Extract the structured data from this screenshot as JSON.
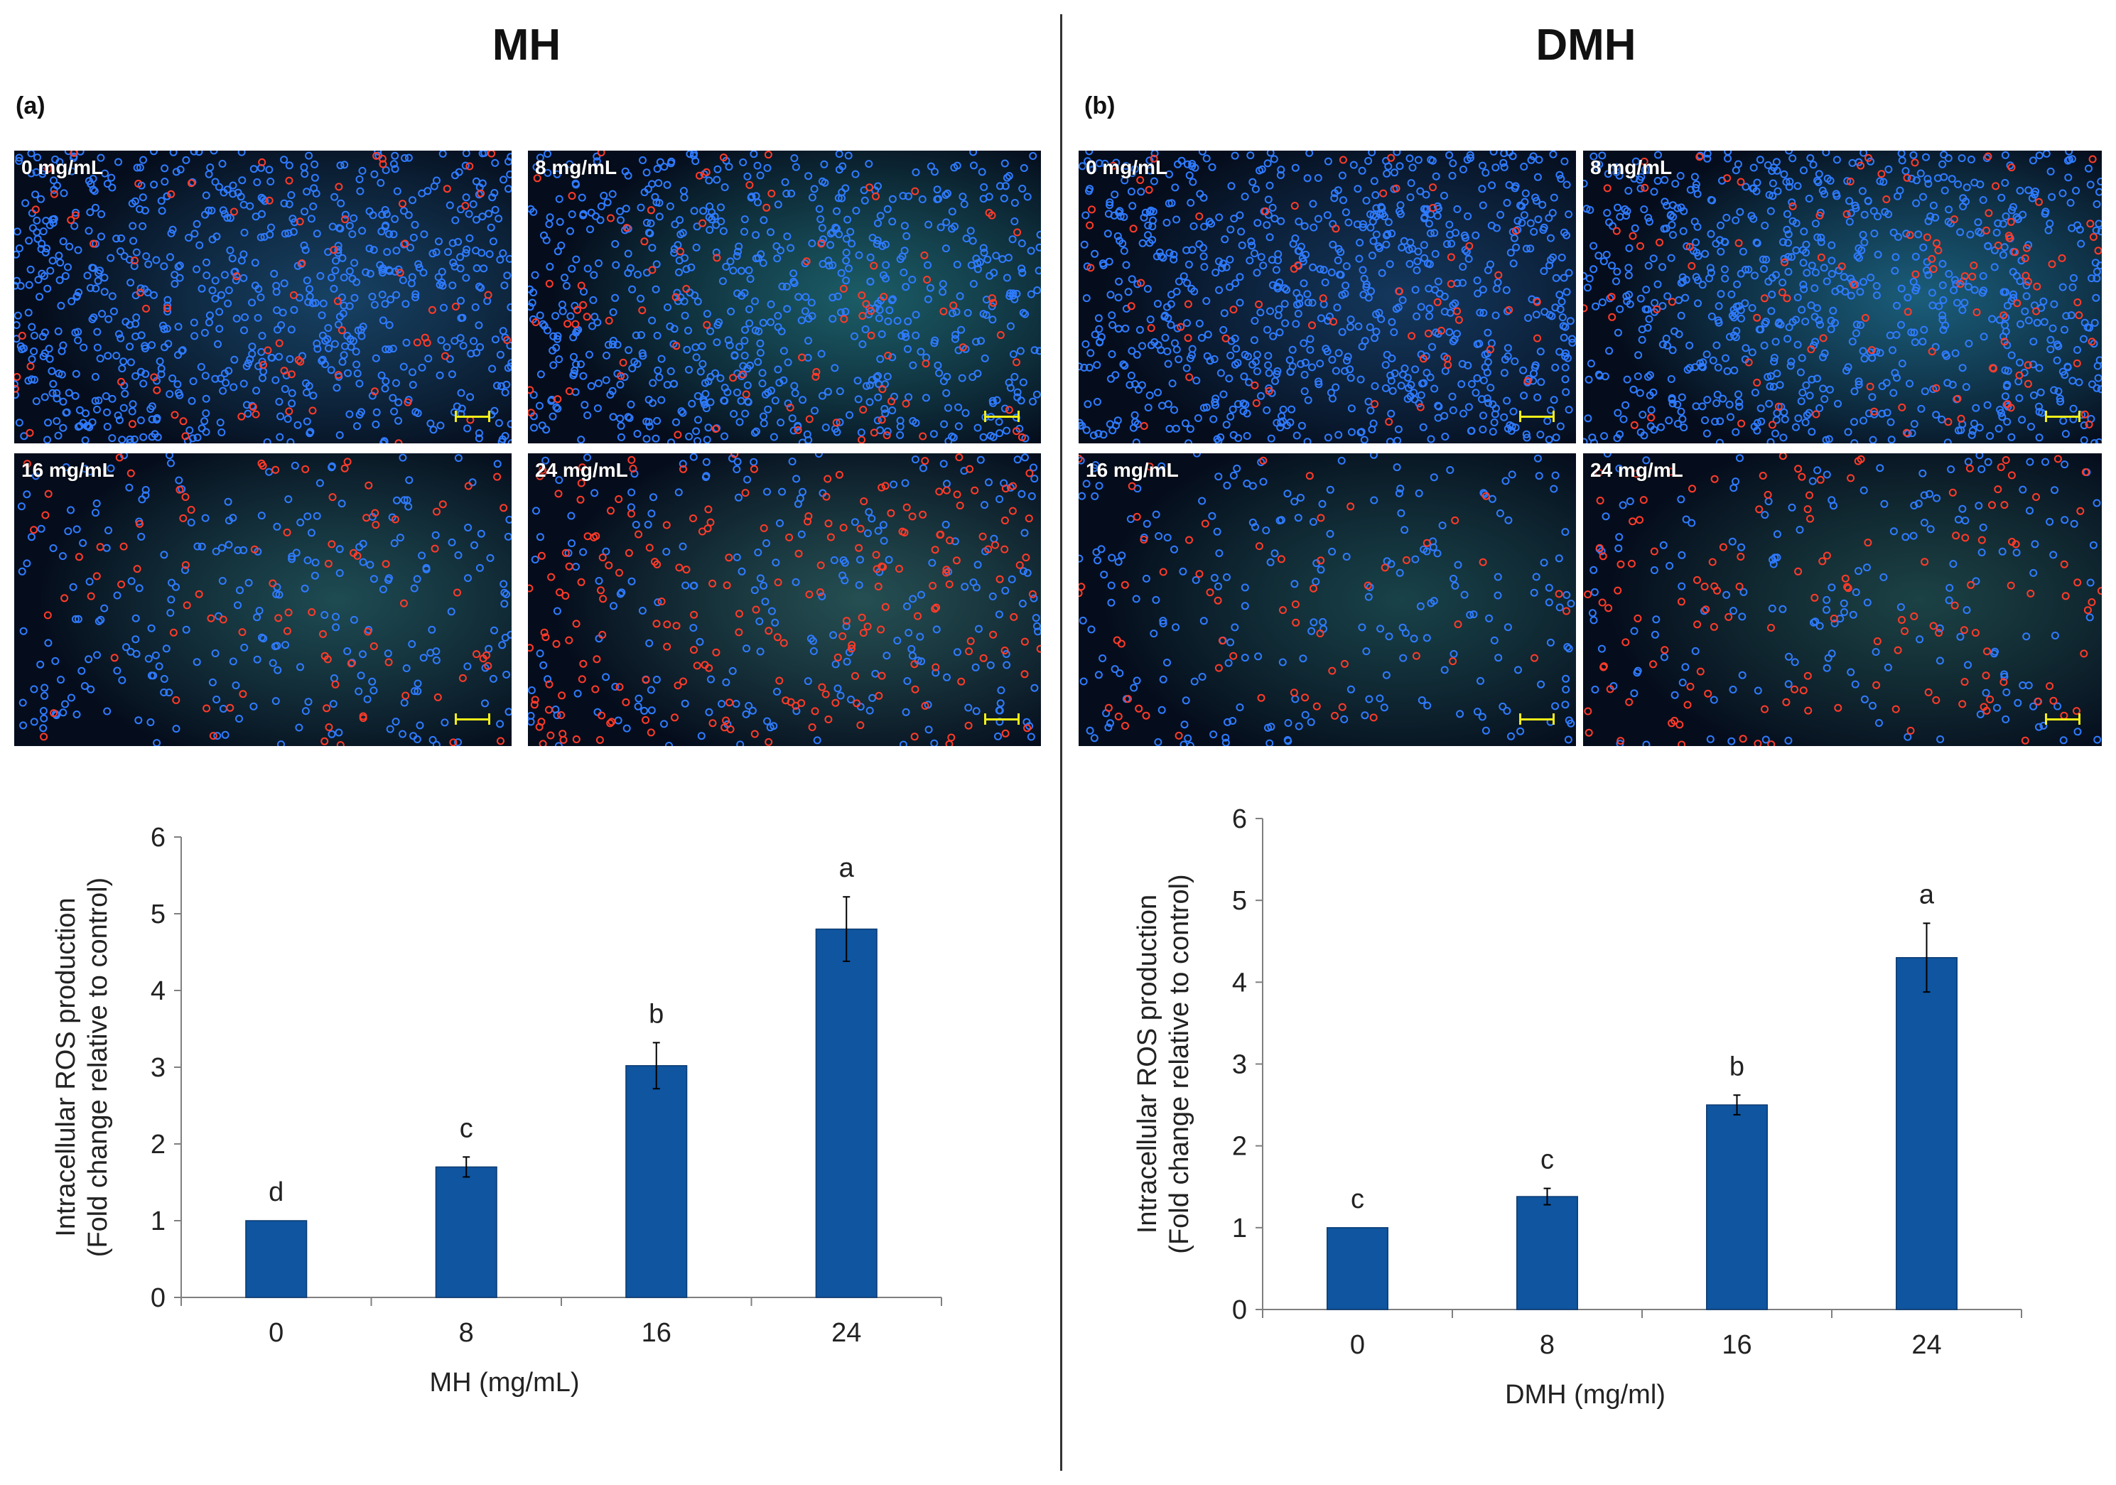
{
  "panels": [
    {
      "title": "MH",
      "label": "(a)",
      "images": [
        {
          "label": "0 mg/mL",
          "red": 75,
          "blue": 760,
          "glow": "#1a4a6e"
        },
        {
          "label": "8 mg/mL",
          "red": 90,
          "blue": 700,
          "glow": "#1f6a72"
        },
        {
          "label": "16 mg/mL",
          "red": 90,
          "blue": 260,
          "glow": "#22555a"
        },
        {
          "label": "24 mg/mL",
          "red": 220,
          "blue": 230,
          "glow": "#2a5a5a"
        }
      ]
    },
    {
      "title": "DMH",
      "label": "(b)",
      "images": [
        {
          "label": "0 mg/mL",
          "red": 60,
          "blue": 800,
          "glow": "#163e66"
        },
        {
          "label": "8 mg/mL",
          "red": 110,
          "blue": 780,
          "glow": "#1e6a88"
        },
        {
          "label": "16 mg/mL",
          "red": 60,
          "blue": 230,
          "glow": "#1c4a4e"
        },
        {
          "label": "24 mg/mL",
          "red": 140,
          "blue": 180,
          "glow": "#1f4a4a"
        }
      ]
    }
  ],
  "chart_data": [
    {
      "type": "bar",
      "categories": [
        "0",
        "8",
        "16",
        "24"
      ],
      "values": [
        1.0,
        1.7,
        3.02,
        4.8
      ],
      "errors": [
        0.0,
        0.13,
        0.3,
        0.42
      ],
      "letters": [
        "d",
        "c",
        "b",
        "a"
      ],
      "xlabel": "MH (mg/mL)",
      "ylabel_line1": "Intracellular ROS production",
      "ylabel_line2": "(Fold change relative to control)",
      "ylim": [
        0,
        6
      ],
      "yticks": [
        "0",
        "1",
        "2",
        "3",
        "4",
        "5",
        "6"
      ],
      "bar_color": "#0f55a0"
    },
    {
      "type": "bar",
      "categories": [
        "0",
        "8",
        "16",
        "24"
      ],
      "values": [
        1.0,
        1.38,
        2.5,
        4.3
      ],
      "errors": [
        0.0,
        0.1,
        0.12,
        0.42
      ],
      "letters": [
        "c",
        "c",
        "b",
        "a"
      ],
      "xlabel": "DMH (mg/ml)",
      "ylabel_line1": "Intracellular ROS production",
      "ylabel_line2": "(Fold change relative to control)",
      "ylim": [
        0,
        6
      ],
      "yticks": [
        "0",
        "1",
        "2",
        "3",
        "4",
        "5",
        "6"
      ],
      "bar_color": "#0f55a0"
    }
  ]
}
